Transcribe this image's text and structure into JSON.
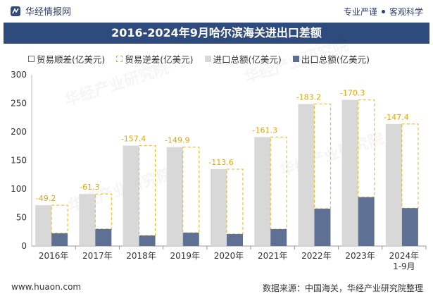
{
  "header": {
    "brand": "华经情报网",
    "tagline_left": "专业严谨",
    "tagline_right": "客观科学"
  },
  "title": "2016-2024年9月哈尔滨海关进出口差额",
  "legend": {
    "surplus": "贸易顺差(亿美元)",
    "deficit": "贸易逆差(亿美元)",
    "import": "进口总额(亿美元)",
    "export": "出口总额(亿美元)"
  },
  "watermark": "华经产业研究院",
  "colors": {
    "import": "#d8d8d8",
    "export": "#5e7093",
    "deficit": "#f0b400",
    "title_bg": "#2f4a7c"
  },
  "chart_data": {
    "type": "bar",
    "categories": [
      "2016年",
      "2017年",
      "2018年",
      "2019年",
      "2020年",
      "2021年",
      "2022年",
      "2023年",
      "2024年\n1-9月"
    ],
    "series": [
      {
        "name": "进口总额(亿美元)",
        "values": [
          71.5,
          91.1,
          175.8,
          173.2,
          134.6,
          190.9,
          248.6,
          255.9,
          213.8
        ]
      },
      {
        "name": "出口总额(亿美元)",
        "values": [
          22.3,
          29.8,
          18.4,
          23.3,
          21.0,
          29.6,
          65.4,
          85.6,
          66.4
        ]
      },
      {
        "name": "贸易逆差(亿美元)",
        "values": [
          -49.2,
          -61.3,
          -157.4,
          -149.9,
          -113.6,
          -161.3,
          -183.2,
          -170.3,
          -147.4
        ]
      }
    ],
    "ylim": [
      0,
      300
    ],
    "yticks": [
      0,
      50,
      100,
      150,
      200,
      250,
      300
    ]
  },
  "footer": {
    "url": "www.huaon.com",
    "source": "数据来源：中国海关，华经产业研究院整理"
  }
}
